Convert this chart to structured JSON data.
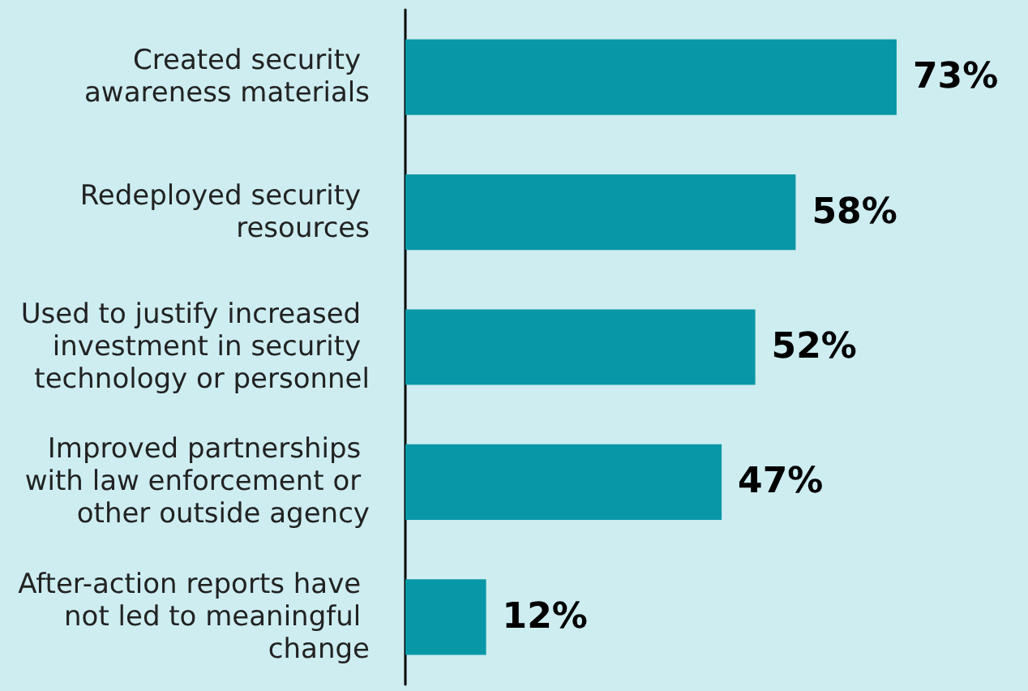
{
  "chart_data": {
    "type": "bar",
    "orientation": "horizontal",
    "categories": [
      "Created security awareness materials",
      "Redeployed security resources",
      "Used to justify increased investment in security technology or personnel",
      "Improved partnerships with law enforcement or other outside agency",
      "After-action reports have not led to meaningful change"
    ],
    "values": [
      73,
      58,
      52,
      47,
      12
    ],
    "value_labels": [
      "73%",
      "58%",
      "52%",
      "47%",
      "12%"
    ],
    "color": "#0897a6"
  }
}
